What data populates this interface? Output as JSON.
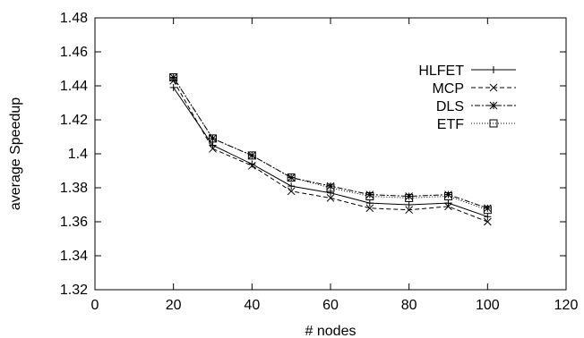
{
  "chart_data": {
    "type": "line",
    "title": "",
    "xlabel": "# nodes",
    "ylabel": "average Speedup",
    "xlim": [
      0,
      120
    ],
    "ylim": [
      1.32,
      1.48
    ],
    "xticks": [
      0,
      20,
      40,
      60,
      80,
      100,
      120
    ],
    "yticks": [
      1.32,
      1.34,
      1.36,
      1.38,
      1.4,
      1.42,
      1.44,
      1.46,
      1.48
    ],
    "grid": false,
    "legend_position": "top-right",
    "x": [
      20,
      30,
      40,
      50,
      60,
      70,
      80,
      90,
      100
    ],
    "series": [
      {
        "name": "HLFET",
        "line_style": "solid",
        "marker": "plus",
        "values": [
          1.439,
          1.405,
          1.394,
          1.381,
          1.377,
          1.371,
          1.37,
          1.371,
          1.363
        ]
      },
      {
        "name": "MCP",
        "line_style": "dashed",
        "marker": "cross",
        "values": [
          1.443,
          1.403,
          1.393,
          1.378,
          1.374,
          1.368,
          1.367,
          1.369,
          1.36
        ]
      },
      {
        "name": "DLS",
        "line_style": "dotdash",
        "marker": "star",
        "values": [
          1.445,
          1.409,
          1.399,
          1.386,
          1.381,
          1.376,
          1.375,
          1.376,
          1.368
        ]
      },
      {
        "name": "ETF",
        "line_style": "dotted",
        "marker": "square",
        "values": [
          1.445,
          1.409,
          1.399,
          1.386,
          1.38,
          1.375,
          1.374,
          1.375,
          1.367
        ]
      }
    ]
  }
}
